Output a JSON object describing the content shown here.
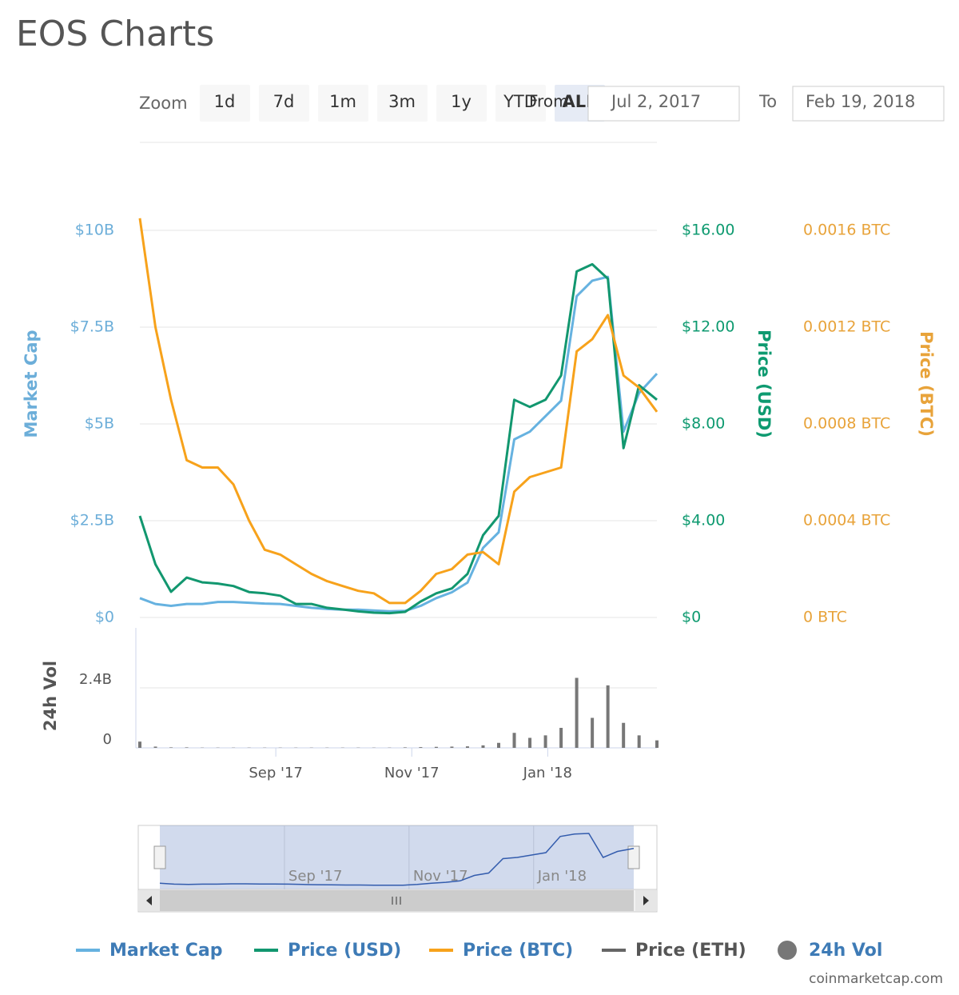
{
  "chart_data": {
    "type": "line",
    "title": "EOS Charts",
    "controls": {
      "zoom_label": "Zoom",
      "buttons": [
        "1d",
        "7d",
        "1m",
        "3m",
        "1y",
        "YTD",
        "ALL"
      ],
      "selected_index": 6,
      "from_label": "From",
      "from_value": "Jul 2, 2017",
      "to_label": "To",
      "to_value": "Feb 19, 2018"
    },
    "x": [
      "2017-07-02",
      "2017-07-09",
      "2017-07-16",
      "2017-07-23",
      "2017-07-30",
      "2017-08-06",
      "2017-08-13",
      "2017-08-20",
      "2017-08-27",
      "2017-09-03",
      "2017-09-10",
      "2017-09-17",
      "2017-09-24",
      "2017-10-01",
      "2017-10-08",
      "2017-10-15",
      "2017-10-22",
      "2017-10-29",
      "2017-11-05",
      "2017-11-12",
      "2017-11-19",
      "2017-11-26",
      "2017-12-03",
      "2017-12-10",
      "2017-12-17",
      "2017-12-24",
      "2017-12-31",
      "2018-01-07",
      "2018-01-14",
      "2018-01-21",
      "2018-01-28",
      "2018-02-04",
      "2018-02-11",
      "2018-02-19"
    ],
    "xlim": [
      "2017-07-02",
      "2018-02-19"
    ],
    "xticks": [
      {
        "value": "2017-09-01",
        "label": "Sep '17"
      },
      {
        "value": "2017-11-01",
        "label": "Nov '17"
      },
      {
        "value": "2018-01-01",
        "label": "Jan '18"
      }
    ],
    "ylabel": "Market Cap",
    "ylim": [
      0,
      10
    ],
    "yticks": [
      {
        "value": 0,
        "label": "$0"
      },
      {
        "value": 2.5,
        "label": "$2.5B"
      },
      {
        "value": 5,
        "label": "$5B"
      },
      {
        "value": 7.5,
        "label": "$7.5B"
      },
      {
        "value": 10,
        "label": "$10B"
      }
    ],
    "y2label": "Price (USD)",
    "y2lim": [
      0,
      16
    ],
    "y2ticks": [
      {
        "value": 0,
        "label": "$0"
      },
      {
        "value": 4,
        "label": "$4.00"
      },
      {
        "value": 8,
        "label": "$8.00"
      },
      {
        "value": 12,
        "label": "$12.00"
      },
      {
        "value": 16,
        "label": "$16.00"
      }
    ],
    "y3label": "Price (BTC)",
    "y3lim": [
      0,
      0.0016
    ],
    "y3ticks": [
      {
        "value": 0,
        "label": "0 BTC"
      },
      {
        "value": 0.0004,
        "label": "0.0004 BTC"
      },
      {
        "value": 0.0008,
        "label": "0.0008 BTC"
      },
      {
        "value": 0.0012,
        "label": "0.0012 BTC"
      },
      {
        "value": 0.0016,
        "label": "0.0016 BTC"
      }
    ],
    "grid": true,
    "series": [
      {
        "name": "Market Cap",
        "color": "#66b2e0",
        "axis": "y",
        "values": [
          0.5,
          0.35,
          0.3,
          0.35,
          0.35,
          0.4,
          0.4,
          0.38,
          0.36,
          0.35,
          0.3,
          0.25,
          0.22,
          0.2,
          0.2,
          0.18,
          0.16,
          0.17,
          0.3,
          0.5,
          0.65,
          0.9,
          1.8,
          2.2,
          4.6,
          4.8,
          5.2,
          5.6,
          8.3,
          8.7,
          8.8,
          4.8,
          5.8,
          6.3
        ]
      },
      {
        "name": "Price (USD)",
        "color": "#12976f",
        "axis": "y2",
        "values": [
          4.2,
          2.2,
          1.06,
          1.65,
          1.45,
          1.4,
          1.3,
          1.05,
          1.0,
          0.9,
          0.56,
          0.56,
          0.4,
          0.33,
          0.25,
          0.2,
          0.18,
          0.23,
          0.66,
          1.0,
          1.2,
          1.8,
          3.4,
          4.2,
          9.0,
          8.7,
          9.0,
          10.0,
          14.3,
          14.6,
          14.0,
          7.0,
          9.6,
          9.0
        ]
      },
      {
        "name": "Price (BTC)",
        "color": "#f7a21b",
        "axis": "y3",
        "values": [
          0.00165,
          0.0012,
          0.0009,
          0.00065,
          0.00062,
          0.00062,
          0.00055,
          0.0004,
          0.00028,
          0.00026,
          0.00022,
          0.00018,
          0.00015,
          0.00013,
          0.00011,
          0.0001,
          6e-05,
          6e-05,
          0.00011,
          0.00018,
          0.0002,
          0.00026,
          0.00027,
          0.00022,
          0.00052,
          0.00058,
          0.0006,
          0.00062,
          0.0011,
          0.00115,
          0.00125,
          0.001,
          0.00095,
          0.00085
        ]
      },
      {
        "name": "Price (ETH)",
        "color": "#666666",
        "axis": "y"
      }
    ],
    "volume": {
      "name": "24h Vol",
      "color": "#777777",
      "ylabel": "24h Vol",
      "ylim": [
        0,
        4.8
      ],
      "yticks": [
        0,
        {
          "value": 2.4,
          "label": "2.4B"
        }
      ],
      "values": [
        0.25,
        0.05,
        0.02,
        0.02,
        0.01,
        0.01,
        0.01,
        0.01,
        0.01,
        0.01,
        0.01,
        0.01,
        0.01,
        0.01,
        0.01,
        0.01,
        0.01,
        0.02,
        0.03,
        0.04,
        0.05,
        0.06,
        0.1,
        0.2,
        0.6,
        0.4,
        0.5,
        0.8,
        2.8,
        1.2,
        2.5,
        1.0,
        0.5,
        0.3
      ]
    },
    "credit": "coinmarketcap.com"
  }
}
